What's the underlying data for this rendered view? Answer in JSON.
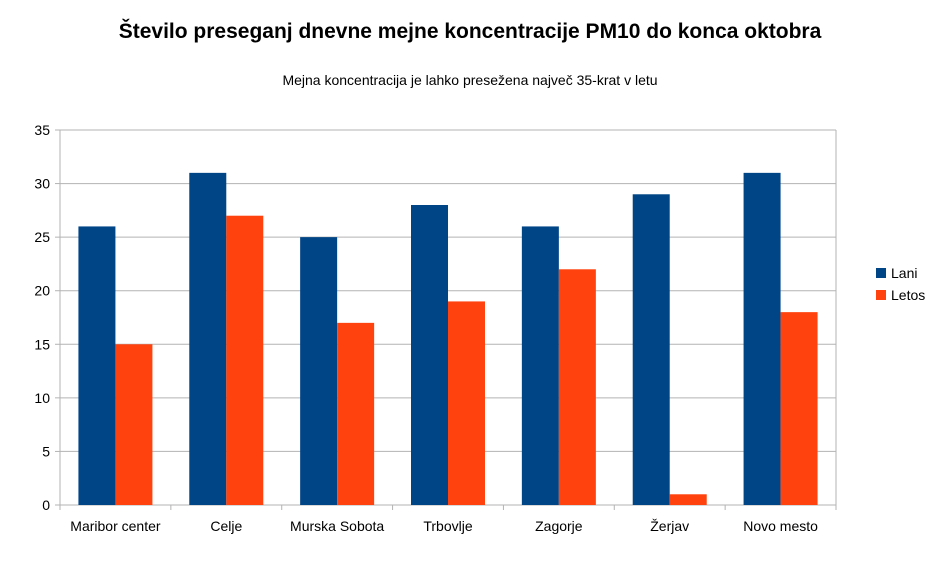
{
  "chart_data": {
    "type": "bar",
    "title": "Število preseganj dnevne mejne koncentracije PM10 do konca oktobra",
    "subtitle": "Mejna koncentracija je lahko presežena največ 35-krat v letu",
    "categories": [
      "Maribor center",
      "Celje",
      "Murska Sobota",
      "Trbovlje",
      "Zagorje",
      "Žerjav",
      "Novo mesto"
    ],
    "series": [
      {
        "name": "Lani",
        "color": "#004586",
        "values": [
          26,
          31,
          25,
          28,
          26,
          29,
          31
        ]
      },
      {
        "name": "Letos",
        "color": "#ff420e",
        "values": [
          15,
          27,
          17,
          19,
          22,
          1,
          18
        ]
      }
    ],
    "ylim": [
      0,
      35
    ],
    "yticks": [
      0,
      5,
      10,
      15,
      20,
      25,
      30,
      35
    ],
    "grid": true,
    "legend_position": "right"
  }
}
